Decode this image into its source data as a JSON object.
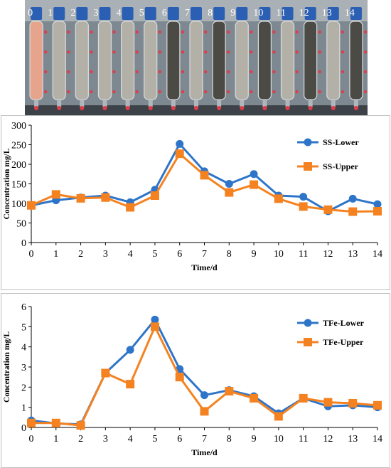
{
  "photo": {
    "column_labels": [
      "0",
      "1",
      "2",
      "3",
      "4",
      "5",
      "6",
      "7",
      "8",
      "9",
      "10",
      "11",
      "12",
      "13",
      "14"
    ],
    "background_color": "#7d8890",
    "cap_color": "#2b5fb3",
    "first_column_fill": "#e6a48c",
    "column_fill": "#b3b0a8",
    "dark_column_fill": "#4c4a44"
  },
  "chart_data": [
    {
      "type": "line",
      "xlabel": "Time/d",
      "ylabel": "Concentration mg/L",
      "x": [
        0,
        1,
        2,
        3,
        4,
        5,
        6,
        7,
        8,
        9,
        10,
        11,
        12,
        13,
        14
      ],
      "xlim": [
        0,
        14
      ],
      "ylim": [
        0,
        300
      ],
      "yticks": [
        0,
        50,
        100,
        150,
        200,
        250,
        300
      ],
      "grid": false,
      "legend_position": "top-right",
      "series": [
        {
          "name": "SS-Lower",
          "color": "#2e75c9",
          "marker": "circle",
          "values": [
            95,
            108,
            115,
            120,
            103,
            135,
            252,
            182,
            150,
            175,
            120,
            117,
            80,
            112,
            98
          ]
        },
        {
          "name": "SS-Upper",
          "color": "#f58220",
          "marker": "square",
          "values": [
            95,
            123,
            113,
            115,
            90,
            120,
            227,
            172,
            128,
            148,
            112,
            92,
            84,
            79,
            80
          ]
        }
      ]
    },
    {
      "type": "line",
      "xlabel": "Time/d",
      "ylabel": "Concentration mg/L",
      "x": [
        0,
        1,
        2,
        3,
        4,
        5,
        6,
        7,
        8,
        9,
        10,
        11,
        12,
        13,
        14
      ],
      "xlim": [
        0,
        14
      ],
      "ylim": [
        0,
        6
      ],
      "yticks": [
        0,
        1,
        2,
        3,
        4,
        5,
        6
      ],
      "grid": false,
      "legend_position": "top-right",
      "series": [
        {
          "name": "TFe-Lower",
          "color": "#2e75c9",
          "marker": "circle",
          "values": [
            0.35,
            0.2,
            0.15,
            2.7,
            3.85,
            5.35,
            2.9,
            1.6,
            1.85,
            1.55,
            0.7,
            1.45,
            1.05,
            1.1,
            1.0
          ]
        },
        {
          "name": "TFe-Upper",
          "color": "#f58220",
          "marker": "square",
          "values": [
            0.22,
            0.22,
            0.1,
            2.7,
            2.15,
            5.0,
            2.5,
            0.8,
            1.8,
            1.45,
            0.55,
            1.45,
            1.25,
            1.2,
            1.1
          ]
        }
      ]
    }
  ]
}
